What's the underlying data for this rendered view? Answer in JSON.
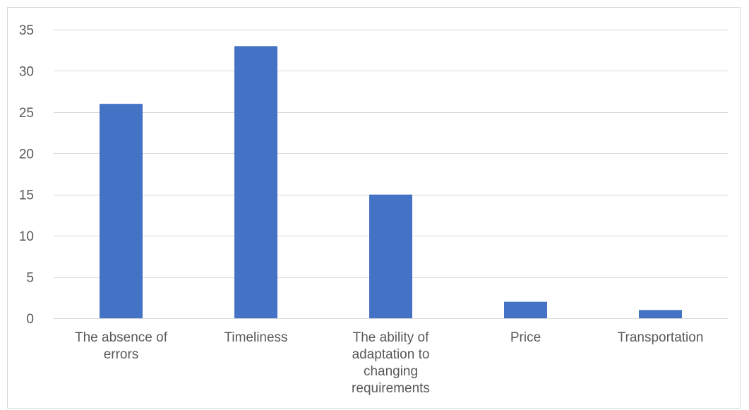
{
  "chart_data": {
    "type": "bar",
    "categories": [
      [
        "The absence of",
        "errors"
      ],
      [
        "Timeliness"
      ],
      [
        "The ability of",
        "adaptation to",
        "changing",
        "requirements"
      ],
      [
        "Price"
      ],
      [
        "Transportation"
      ]
    ],
    "values": [
      26,
      33,
      15,
      2,
      1
    ],
    "ylim": [
      0,
      35
    ],
    "yticks": [
      0,
      5,
      10,
      15,
      20,
      25,
      30,
      35
    ],
    "grid": true,
    "legend": "none",
    "colors": {
      "bar": "#4472c4",
      "grid": "#d9d9d9",
      "text": "#595959"
    }
  }
}
